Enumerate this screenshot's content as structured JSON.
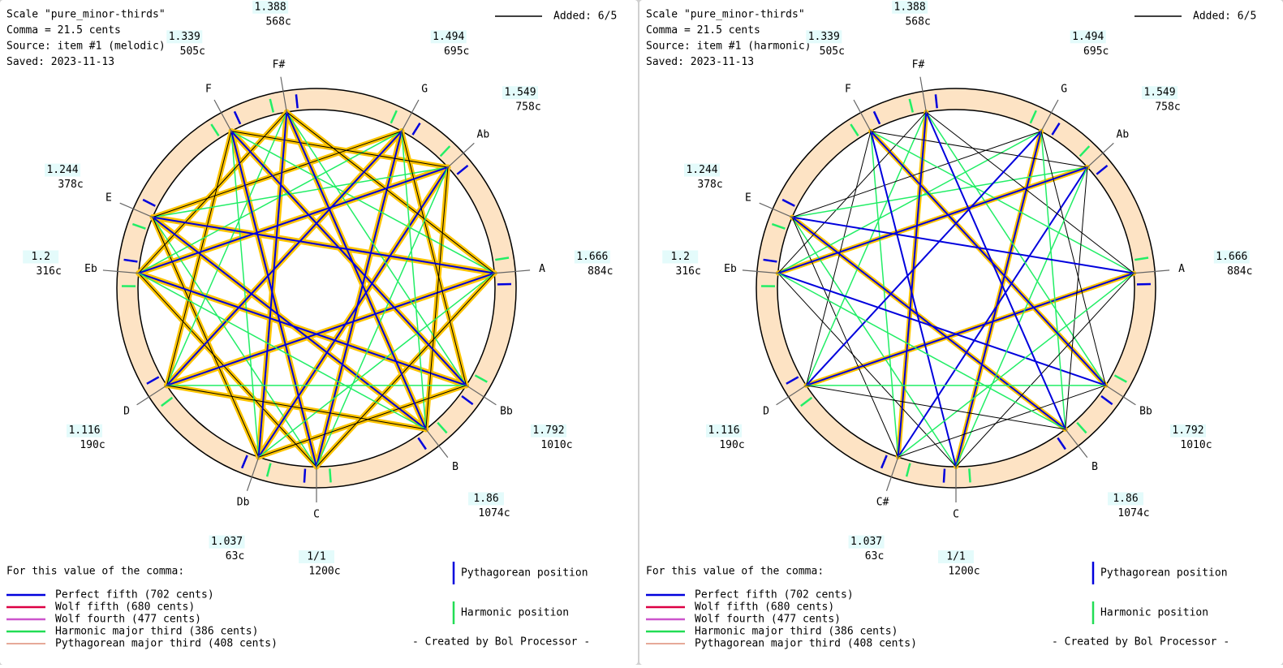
{
  "panels": [
    {
      "header": [
        "Scale \"pure_minor-thirds\"",
        "Comma = 21.5 cents",
        "Source: item #1 (melodic)",
        "Saved: 2023-11-13"
      ],
      "added": "Added: 6/5",
      "notes": [
        {
          "name": "C",
          "ratio": "1/1",
          "cents": {
            "value": 1200,
            "label": "1200c"
          }
        },
        {
          "name": "Db",
          "ratio": "1.037",
          "cents": {
            "value": 63,
            "label": "63c"
          }
        },
        {
          "name": "D",
          "ratio": "1.116",
          "cents": {
            "value": 190,
            "label": "190c"
          }
        },
        {
          "name": "Eb",
          "ratio": "1.2",
          "cents": {
            "value": 316,
            "label": "316c"
          }
        },
        {
          "name": "E",
          "ratio": "1.244",
          "cents": {
            "value": 378,
            "label": "378c"
          }
        },
        {
          "name": "F",
          "ratio": "1.339",
          "cents": {
            "value": 505,
            "label": "505c"
          }
        },
        {
          "name": "F#",
          "ratio": "1.388",
          "cents": {
            "value": 568,
            "label": "568c"
          }
        },
        {
          "name": "G",
          "ratio": "1.494",
          "cents": {
            "value": 695,
            "label": "695c"
          }
        },
        {
          "name": "Ab",
          "ratio": "1.549",
          "cents": {
            "value": 758,
            "label": "758c"
          }
        },
        {
          "name": "A",
          "ratio": "1.666",
          "cents": {
            "value": 884,
            "label": "884c"
          }
        },
        {
          "name": "Bb",
          "ratio": "1.792",
          "cents": {
            "value": 1010,
            "label": "1010c"
          }
        },
        {
          "name": "B",
          "ratio": "1.86",
          "cents": {
            "value": 1074,
            "label": "1074c"
          }
        }
      ],
      "comma_note": "For this value of the comma:",
      "legend": [
        {
          "label": "Perfect fifth (702 cents)",
          "color": "#0000dd"
        },
        {
          "label": "Wolf fifth (680 cents)",
          "color": "#dd0044"
        },
        {
          "label": "Wolf fourth (477 cents)",
          "color": "#cc55cc"
        },
        {
          "label": "Harmonic major third (386 cents)",
          "color": "#22dd55"
        },
        {
          "label": "Pythagorean major third (408 cents)",
          "color": "#cc5533"
        }
      ],
      "positions": [
        {
          "label": "Pythagorean position",
          "color": "#0000dd"
        },
        {
          "label": "Harmonic position",
          "color": "#22dd55"
        }
      ],
      "credit": "- Created by Bol Processor -"
    },
    {
      "header": [
        "Scale \"pure_minor-thirds\"",
        "Comma = 21.5 cents",
        "Source: item #1 (harmonic)",
        "Saved: 2023-11-13"
      ],
      "added": "Added: 6/5",
      "notes": [
        {
          "name": "C",
          "ratio": "1/1",
          "cents": {
            "value": 1200,
            "label": "1200c"
          }
        },
        {
          "name": "C#",
          "ratio": "1.037",
          "cents": {
            "value": 63,
            "label": "63c"
          }
        },
        {
          "name": "D",
          "ratio": "1.116",
          "cents": {
            "value": 190,
            "label": "190c"
          }
        },
        {
          "name": "Eb",
          "ratio": "1.2",
          "cents": {
            "value": 316,
            "label": "316c"
          }
        },
        {
          "name": "E",
          "ratio": "1.244",
          "cents": {
            "value": 378,
            "label": "378c"
          }
        },
        {
          "name": "F",
          "ratio": "1.339",
          "cents": {
            "value": 505,
            "label": "505c"
          }
        },
        {
          "name": "F#",
          "ratio": "1.388",
          "cents": {
            "value": 568,
            "label": "568c"
          }
        },
        {
          "name": "G",
          "ratio": "1.494",
          "cents": {
            "value": 695,
            "label": "695c"
          }
        },
        {
          "name": "Ab",
          "ratio": "1.549",
          "cents": {
            "value": 758,
            "label": "758c"
          }
        },
        {
          "name": "A",
          "ratio": "1.666",
          "cents": {
            "value": 884,
            "label": "884c"
          }
        },
        {
          "name": "Bb",
          "ratio": "1.792",
          "cents": {
            "value": 1010,
            "label": "1010c"
          }
        },
        {
          "name": "B",
          "ratio": "1.86",
          "cents": {
            "value": 1074,
            "label": "1074c"
          }
        }
      ],
      "comma_note": "For this value of the comma:",
      "legend": [
        {
          "label": "Perfect fifth (702 cents)",
          "color": "#0000dd"
        },
        {
          "label": "Wolf fifth (680 cents)",
          "color": "#dd0044"
        },
        {
          "label": "Wolf fourth (477 cents)",
          "color": "#cc55cc"
        },
        {
          "label": "Harmonic major third (386 cents)",
          "color": "#22dd55"
        },
        {
          "label": "Pythagorean major third (408 cents)",
          "color": "#cc5533"
        }
      ],
      "positions": [
        {
          "label": "Pythagorean position",
          "color": "#0000dd"
        },
        {
          "label": "Harmonic position",
          "color": "#22dd55"
        }
      ],
      "credit": "- Created by Bol Processor -"
    }
  ]
}
